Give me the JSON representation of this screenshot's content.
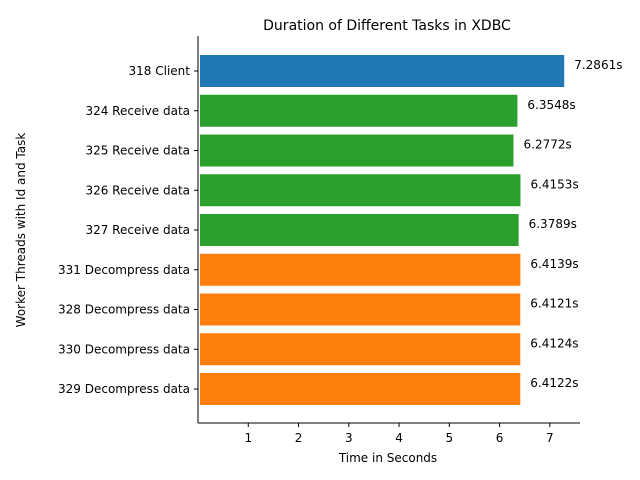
{
  "chart_data": {
    "type": "bar",
    "orientation": "horizontal",
    "title": "Duration of Different Tasks in XDBC",
    "xlabel": "Time in Seconds",
    "ylabel": "Worker Threads with Id and Task",
    "xlim": [
      0,
      7.6
    ],
    "xticks": [
      1,
      2,
      3,
      4,
      5,
      6,
      7
    ],
    "grid": false,
    "categories": [
      "318 Client",
      "324 Receive data",
      "325 Receive data",
      "326 Receive data",
      "327 Receive data",
      "331 Decompress data",
      "328 Decompress data",
      "330 Decompress data",
      "329 Decompress data"
    ],
    "values": [
      7.2861,
      6.3548,
      6.2772,
      6.4153,
      6.3789,
      6.4139,
      6.4121,
      6.4124,
      6.4122
    ],
    "value_labels": [
      "7.2861s",
      "6.3548s",
      "6.2772s",
      "6.4153s",
      "6.3789s",
      "6.4139s",
      "6.4121s",
      "6.4124s",
      "6.4122s"
    ],
    "bar_colors": [
      "#1f77b4",
      "#2ca02c",
      "#2ca02c",
      "#2ca02c",
      "#2ca02c",
      "#ff7f0e",
      "#ff7f0e",
      "#ff7f0e",
      "#ff7f0e"
    ]
  }
}
